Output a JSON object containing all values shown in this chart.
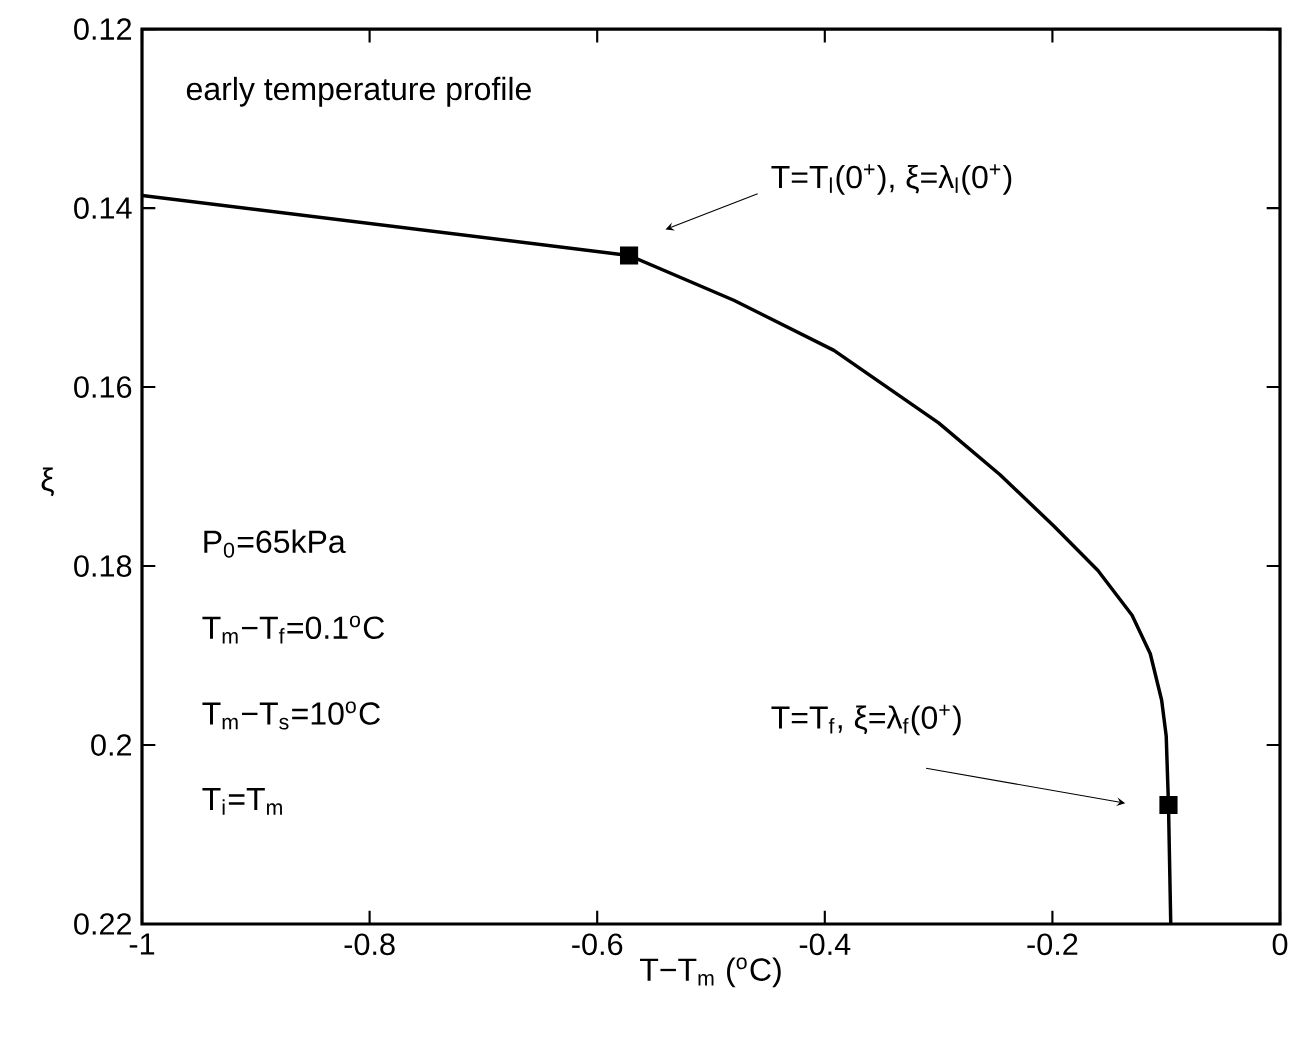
{
  "chart_data": {
    "type": "line",
    "title": "early temperature profile",
    "xlabel": "T−T$_{m}$ ($^{o}$C)",
    "ylabel": "ξ",
    "xlim": [
      -1,
      0
    ],
    "xticks": [
      -1,
      -0.8,
      -0.6,
      -0.4,
      -0.2,
      0
    ],
    "ylim": [
      0.22,
      0.12
    ],
    "yticks": [
      0.12,
      0.14,
      0.16,
      0.18,
      0.2,
      0.22
    ],
    "series": [
      {
        "color": "#000000",
        "marker": "none",
        "line_style": "solid",
        "x": [
          -1,
          -0.572,
          -0.48,
          -0.392,
          -0.3,
          -0.246,
          -0.199,
          -0.16,
          -0.13,
          -0.114,
          -0.104,
          -0.1,
          -0.098,
          -0.096
        ],
        "values": [
          0.1386,
          0.1453,
          0.1503,
          0.1559,
          0.164,
          0.1698,
          0.1755,
          0.1805,
          0.1855,
          0.1898,
          0.195,
          0.199,
          0.2067,
          0.22
        ]
      },
      {
        "type": "scatter",
        "color": "#000000",
        "marker": "square",
        "x": [
          -0.572,
          -0.098
        ],
        "values": [
          0.1453,
          0.2067
        ]
      }
    ],
    "annotations": [
      "T=T$_{l}$(0$^{+}$), ξ=λ$_{l}$(0$^{+}$)",
      "T=T$_{f}$, ξ=λ$_{f}$(0$^{+}$)",
      "P$_{0}$=65kPa",
      "T$_{m}$−T$_{f}$=0.1$^{o}$C",
      "T$_{m}$−T$_{s}$=10$^{o}$C",
      "T$_{i}$=T$_{m}$"
    ]
  }
}
